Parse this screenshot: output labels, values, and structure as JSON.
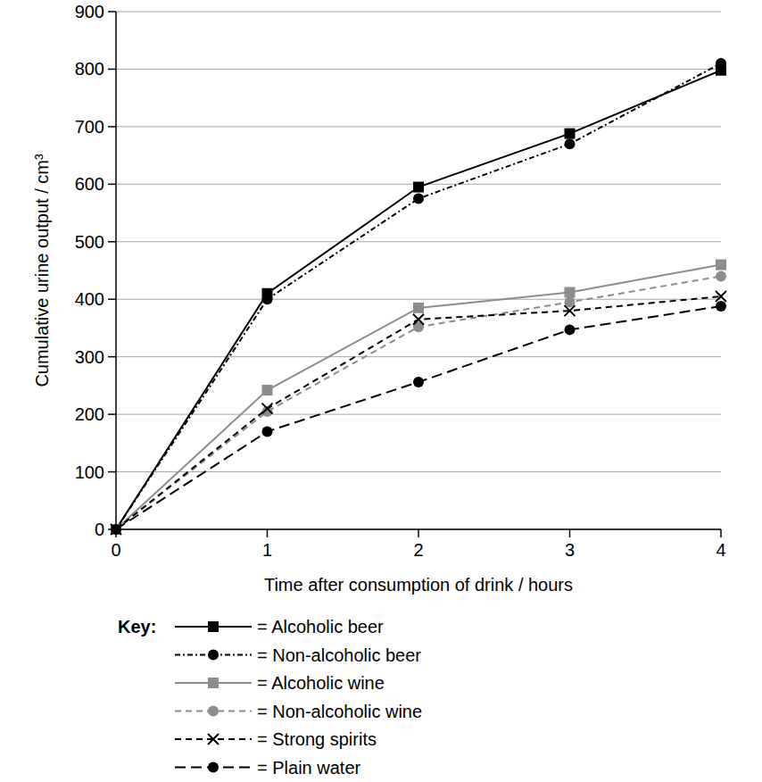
{
  "chart_data": {
    "type": "line",
    "x_label": "Time after consumption of drink / hours",
    "y_label": "Cumulative urine output / cm³",
    "legend_title": "Key:",
    "x": [
      0,
      1,
      2,
      3,
      4
    ],
    "series": [
      {
        "name": "= Alcoholic beer",
        "color": "#000000",
        "marker": "square",
        "line_style": "solid",
        "values": [
          0,
          410,
          595,
          688,
          798
        ]
      },
      {
        "name": "= Non-alcoholic beer",
        "color": "#000000",
        "marker": "circle",
        "line_style": "dashdot",
        "values": [
          0,
          400,
          575,
          670,
          810
        ]
      },
      {
        "name": "= Alcoholic wine",
        "color": "#8c8c8c",
        "marker": "square",
        "line_style": "solid",
        "values": [
          0,
          242,
          385,
          412,
          460
        ]
      },
      {
        "name": "= Non-alcoholic wine",
        "color": "#8c8c8c",
        "marker": "circle",
        "line_style": "dashed",
        "values": [
          0,
          205,
          352,
          395,
          440
        ]
      },
      {
        "name": "= Strong spirits",
        "color": "#000000",
        "marker": "x",
        "line_style": "dashed",
        "values": [
          0,
          210,
          365,
          380,
          405
        ]
      },
      {
        "name": "= Plain water",
        "color": "#000000",
        "marker": "circle",
        "line_style": "longdash",
        "values": [
          0,
          170,
          256,
          347,
          388
        ]
      }
    ],
    "xlim": [
      0,
      4
    ],
    "xticks": [
      0,
      1,
      2,
      3,
      4
    ],
    "ylim": [
      0,
      900
    ],
    "yticks": [
      0,
      100,
      200,
      300,
      400,
      500,
      600,
      700,
      800,
      900
    ],
    "grid": true
  }
}
